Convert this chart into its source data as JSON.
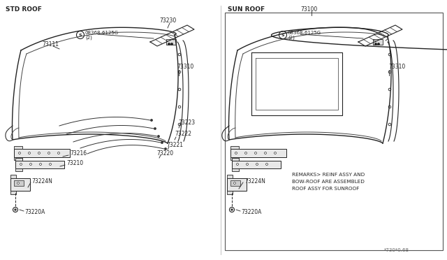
{
  "bg_color": "#ffffff",
  "line_color": "#222222",
  "title_left": "STD ROOF",
  "title_right": "SUN ROOF",
  "part_number_right": "73100",
  "bolt_label_1": "08368-6125G",
  "bolt_label_2": "(2)",
  "footnote": "*730*0.68",
  "remarks_line1": "REMARKS> REINF ASSY AND",
  "remarks_line2": "BOW-ROOF ARE ASSEMBLED",
  "remarks_line3": "ROOF ASSY FOR SUNROOF"
}
